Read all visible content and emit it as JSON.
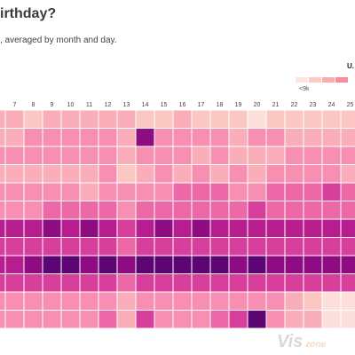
{
  "page": {
    "title_fragment": "irthday?",
    "subtitle_fragment": ", averaged by month and day.",
    "legend_label_fragment": "U.",
    "legend_min_label": "<9k",
    "legend_colors": [
      "#fde6e2",
      "#fccbc5",
      "#fbafa9",
      "#f98d9c"
    ],
    "watermark_main": "Vis",
    "watermark_sub": "zone"
  },
  "chart_data": {
    "type": "heatmap",
    "x": [
      7,
      8,
      9,
      10,
      11,
      12,
      13,
      14,
      15,
      16,
      17,
      18,
      19,
      20,
      21,
      22,
      23,
      24,
      25
    ],
    "rows_visible": 12,
    "color_scale": {
      "low_label": "<9k",
      "stops": [
        "#fff0ed",
        "#fde0dc",
        "#fbc7c3",
        "#f9aeb9",
        "#f68fb1",
        "#ec68a7",
        "#d83e9c",
        "#b71d8f",
        "#8f0b82",
        "#5e0574"
      ]
    },
    "levels": [
      [
        3,
        2,
        3,
        3,
        3,
        3,
        3,
        2,
        2,
        3,
        2,
        2,
        2,
        1,
        2,
        2,
        2,
        2,
        2
      ],
      [
        3,
        4,
        4,
        4,
        4,
        4,
        3,
        8,
        4,
        4,
        4,
        4,
        3,
        4,
        4,
        3,
        3,
        3,
        3
      ],
      [
        4,
        4,
        4,
        4,
        4,
        4,
        3,
        4,
        4,
        4,
        3,
        4,
        3,
        3,
        3,
        4,
        4,
        4,
        4
      ],
      [
        3,
        3,
        3,
        3,
        3,
        4,
        2,
        3,
        4,
        3,
        4,
        3,
        4,
        3,
        4,
        4,
        4,
        4,
        3
      ],
      [
        4,
        4,
        4,
        4,
        3,
        4,
        4,
        4,
        4,
        5,
        5,
        5,
        4,
        4,
        5,
        5,
        5,
        6,
        5
      ],
      [
        4,
        4,
        5,
        5,
        5,
        5,
        4,
        5,
        5,
        5,
        5,
        5,
        5,
        6,
        5,
        5,
        5,
        5,
        5
      ],
      [
        7,
        7,
        8,
        7,
        8,
        7,
        6,
        7,
        8,
        7,
        8,
        7,
        7,
        7,
        7,
        7,
        7,
        7,
        7
      ],
      [
        6,
        6,
        6,
        6,
        6,
        6,
        5,
        6,
        6,
        6,
        6,
        6,
        6,
        6,
        6,
        6,
        6,
        6,
        6
      ],
      [
        7,
        8,
        9,
        9,
        8,
        9,
        8,
        9,
        9,
        9,
        9,
        9,
        8,
        9,
        8,
        8,
        8,
        8,
        8
      ],
      [
        6,
        6,
        6,
        6,
        6,
        6,
        5,
        6,
        6,
        6,
        6,
        6,
        6,
        6,
        6,
        6,
        6,
        6,
        6
      ],
      [
        4,
        4,
        4,
        4,
        4,
        4,
        3,
        4,
        4,
        4,
        4,
        4,
        4,
        4,
        4,
        3,
        2,
        1,
        1
      ],
      [
        4,
        4,
        4,
        4,
        4,
        5,
        3,
        6,
        4,
        4,
        4,
        5,
        6,
        9,
        4,
        3,
        3,
        1,
        1
      ]
    ]
  }
}
